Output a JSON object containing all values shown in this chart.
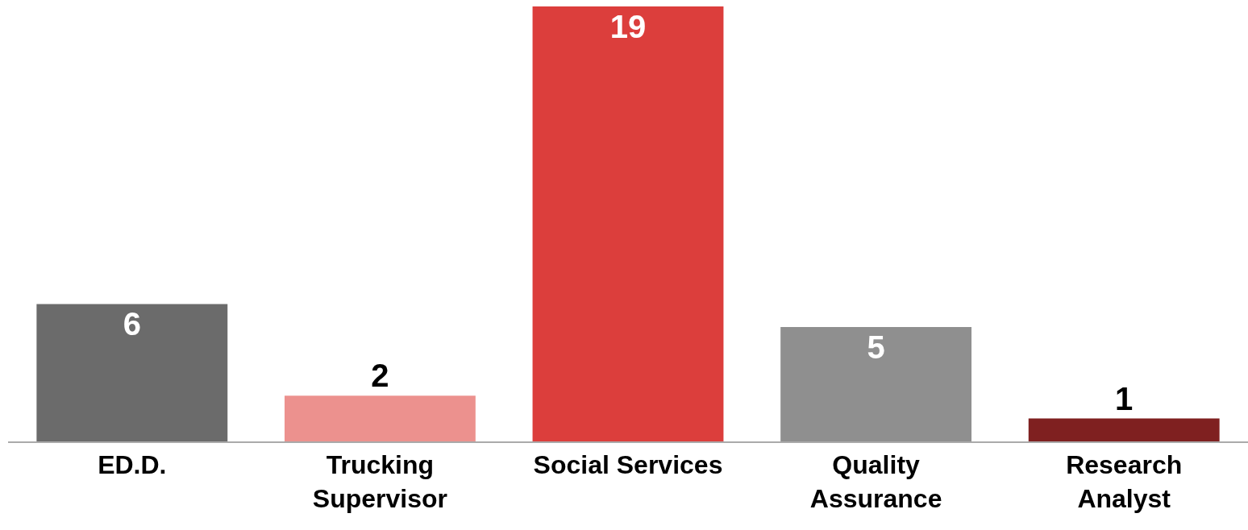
{
  "chart_data": {
    "type": "bar",
    "categories": [
      "ED.D.",
      "Trucking\nSupervisor",
      "Social Services",
      "Quality\nAssurance",
      "Research\nAnalyst"
    ],
    "values": [
      6,
      2,
      19,
      5,
      1
    ],
    "colors": [
      "#6b6b6b",
      "#ec918e",
      "#dc3e3c",
      "#8f8f8f",
      "#7f2020"
    ],
    "ylim": [
      0,
      19
    ],
    "data_labels": true,
    "tick_labels": "x"
  }
}
